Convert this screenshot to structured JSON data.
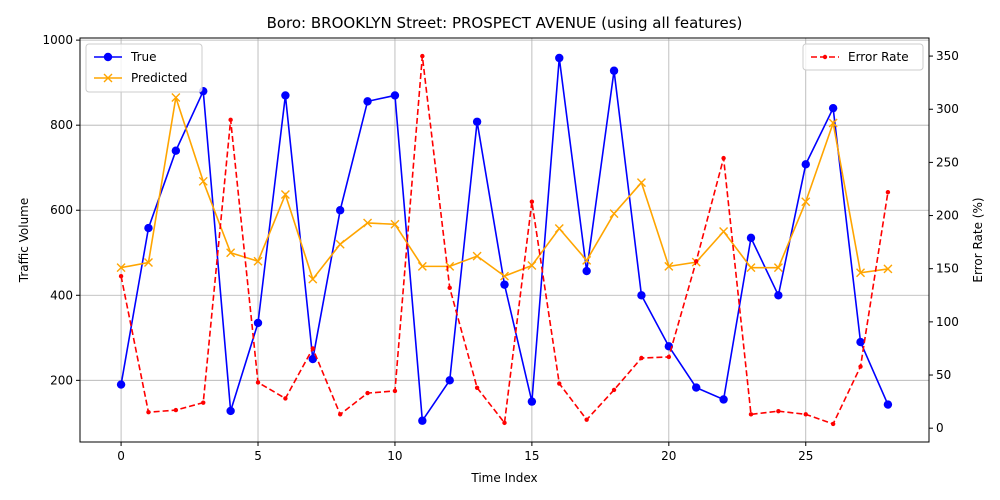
{
  "chart_data": {
    "type": "line",
    "title": "Boro: BROOKLYN Street: PROSPECT AVENUE (using all features)",
    "xlabel": "Time Index",
    "ylabel": "Traffic Volume",
    "y2label": "Error Rate (%)",
    "xlim": [
      -1.5,
      29.5
    ],
    "ylim": [
      55,
      1005
    ],
    "y2lim": [
      -13,
      367
    ],
    "xticks": [
      0,
      5,
      10,
      15,
      20,
      25
    ],
    "yticks": [
      200,
      400,
      600,
      800,
      1000
    ],
    "y2ticks": [
      0,
      50,
      100,
      150,
      200,
      250,
      300,
      350
    ],
    "grid": true,
    "x": [
      0,
      1,
      2,
      3,
      4,
      5,
      6,
      7,
      8,
      9,
      10,
      11,
      12,
      13,
      14,
      15,
      16,
      17,
      18,
      19,
      20,
      21,
      22,
      23,
      24,
      25,
      26,
      27,
      28
    ],
    "series": [
      {
        "name": "True",
        "axis": "left",
        "color": "#0000ff",
        "marker": "circle",
        "values": [
          190,
          558,
          740,
          880,
          128,
          335,
          870,
          250,
          600,
          856,
          870,
          105,
          200,
          808,
          425,
          150,
          958,
          457,
          928,
          400,
          280,
          183,
          155,
          535,
          400,
          708,
          840,
          290,
          143
        ]
      },
      {
        "name": "Predicted",
        "axis": "left",
        "color": "#ffa500",
        "marker": "x",
        "values": [
          465,
          477,
          865,
          668,
          500,
          480,
          637,
          438,
          520,
          570,
          567,
          468,
          468,
          492,
          445,
          470,
          557,
          482,
          592,
          665,
          468,
          478,
          550,
          465,
          465,
          620,
          805,
          453,
          462
        ]
      },
      {
        "name": "Error Rate",
        "axis": "right",
        "color": "#ff0000",
        "marker": "dot",
        "linestyle": "dashed",
        "values": [
          143,
          15,
          17,
          24,
          290,
          43,
          28,
          75,
          13,
          33,
          35,
          350,
          132,
          38,
          5,
          213,
          42,
          8,
          36,
          66,
          67,
          157,
          254,
          13,
          16,
          13,
          4,
          58,
          222
        ]
      }
    ],
    "legend_left": "upper-left",
    "legend_right": "upper-right"
  }
}
